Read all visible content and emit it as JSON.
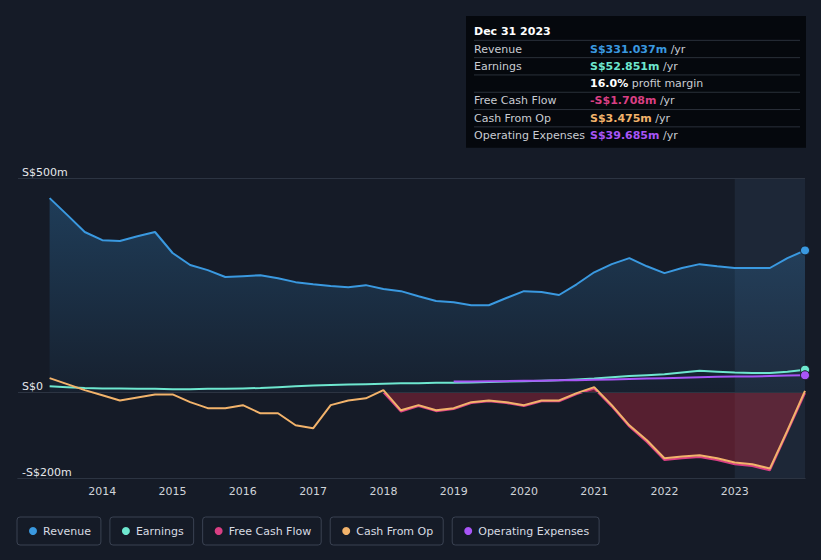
{
  "chart_data": {
    "type": "line",
    "x": [
      2013.25,
      2013.5,
      2013.75,
      2014,
      2014.25,
      2014.5,
      2014.75,
      2015,
      2015.25,
      2015.5,
      2015.75,
      2016,
      2016.25,
      2016.5,
      2016.75,
      2017,
      2017.25,
      2017.5,
      2017.75,
      2018,
      2018.25,
      2018.5,
      2018.75,
      2019,
      2019.25,
      2019.5,
      2019.75,
      2020,
      2020.25,
      2020.5,
      2020.75,
      2021,
      2021.25,
      2021.5,
      2021.75,
      2022,
      2022.25,
      2022.5,
      2022.75,
      2023,
      2023.25,
      2023.5,
      2023.75,
      2024
    ],
    "xlim": [
      2012.8,
      2024.0
    ],
    "xticks": [
      2014,
      2015,
      2016,
      2017,
      2018,
      2019,
      2020,
      2021,
      2022,
      2023
    ],
    "ylim": [
      -200,
      500
    ],
    "yticks": [
      {
        "value": -200,
        "label": "-S$200m"
      },
      {
        "value": 0,
        "label": "S$0"
      },
      {
        "value": 500,
        "label": "S$500m"
      }
    ],
    "grid": true,
    "legend": "bottom",
    "shaded_range": [
      2023.0,
      2024.0
    ],
    "series": [
      {
        "name": "Revenue",
        "color": "#3a99e0",
        "type": "area",
        "marker": "circle",
        "values": [
          453,
          414,
          374,
          355,
          353,
          364,
          374,
          325,
          297,
          285,
          269,
          271,
          273,
          266,
          257,
          252,
          248,
          245,
          250,
          241,
          236,
          224,
          213,
          210,
          203,
          203,
          220,
          236,
          234,
          227,
          252,
          280,
          299,
          313,
          294,
          278,
          290,
          299,
          294,
          290,
          290,
          290,
          313,
          331.037
        ]
      },
      {
        "name": "Earnings",
        "color": "#6ee7cf",
        "type": "line",
        "marker": "circle",
        "values": [
          14,
          12,
          10,
          9,
          9,
          8,
          8,
          7,
          7,
          8,
          8,
          9,
          10,
          12,
          14,
          16,
          17,
          18,
          19,
          20,
          21,
          21,
          22,
          22,
          23,
          24,
          25,
          26,
          27,
          28,
          30,
          32,
          35,
          38,
          40,
          42,
          46,
          50,
          48,
          46,
          45,
          45,
          48,
          52.851
        ]
      },
      {
        "name": "Free Cash Flow",
        "color": "#d93f83",
        "type": "area",
        "values": [
          null,
          null,
          null,
          null,
          null,
          null,
          null,
          null,
          null,
          null,
          null,
          null,
          null,
          null,
          null,
          null,
          null,
          null,
          null,
          0,
          -45,
          -32,
          -44,
          -39,
          -25,
          -21,
          -25,
          -32,
          -21,
          -21,
          -4,
          9,
          -33,
          -80,
          -116,
          -158,
          -154,
          -151,
          -158,
          -168,
          -172,
          -182,
          -92,
          -1.708
        ]
      },
      {
        "name": "Cash From Op",
        "color": "#f2b36b",
        "type": "line",
        "values": [
          33,
          19,
          5,
          -7,
          -19,
          -12,
          -5,
          -5,
          -23,
          -37,
          -37,
          -30,
          -49,
          -49,
          -77,
          -84,
          -30,
          -19,
          -14,
          5,
          -42,
          -30,
          -42,
          -37,
          -23,
          -19,
          -23,
          -30,
          -19,
          -19,
          -2,
          12,
          -30,
          -77,
          -112,
          -154,
          -150,
          -147,
          -154,
          -164,
          -168,
          -178,
          -89,
          3.475
        ]
      },
      {
        "name": "Operating Expenses",
        "color": "#a855f7",
        "type": "line",
        "marker": "circle",
        "values": [
          null,
          null,
          null,
          null,
          null,
          null,
          null,
          null,
          null,
          null,
          null,
          null,
          null,
          null,
          null,
          null,
          null,
          null,
          null,
          null,
          null,
          null,
          null,
          25,
          25,
          26,
          26,
          27,
          27,
          28,
          28,
          29,
          30,
          31,
          32,
          33,
          34,
          35,
          36,
          37,
          37,
          38,
          39,
          39.685
        ]
      }
    ],
    "info_box": {
      "title": "Dec 31 2023",
      "rows": [
        {
          "label": "Revenue",
          "value": "S$331.037m",
          "unit": "/yr",
          "color": "#3a99e0"
        },
        {
          "label": "Earnings",
          "value": "S$52.851m",
          "unit": "/yr",
          "color": "#6ee7cf"
        },
        {
          "value": "16.0%",
          "unit": "profit margin",
          "color": "#ffffff"
        },
        {
          "label": "Free Cash Flow",
          "value": "-S$1.708m",
          "unit": "/yr",
          "color": "#d93f83"
        },
        {
          "label": "Cash From Op",
          "value": "S$3.475m",
          "unit": "/yr",
          "color": "#f2b36b"
        },
        {
          "label": "Operating Expenses",
          "value": "S$39.685m",
          "unit": "/yr",
          "color": "#a855f7"
        }
      ]
    }
  }
}
